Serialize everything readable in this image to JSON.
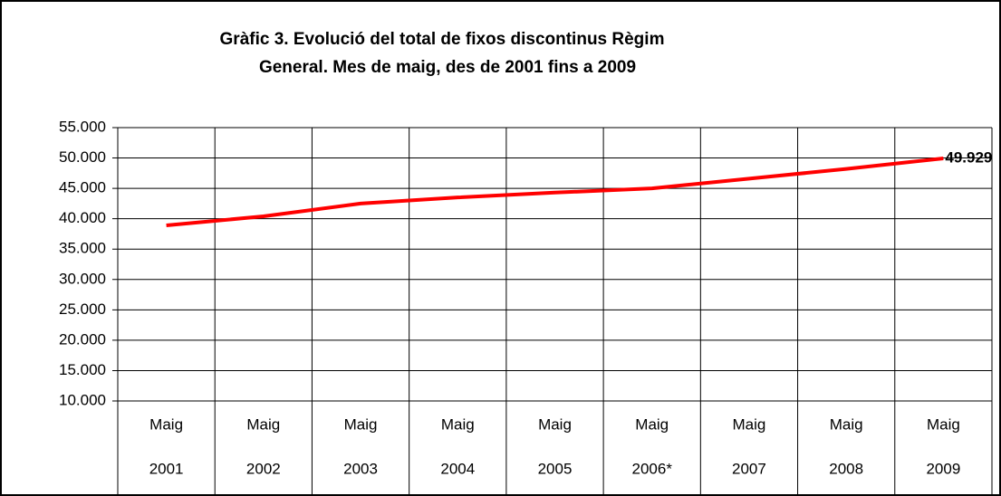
{
  "chart_data": {
    "type": "line",
    "title": [
      "Gràfic 3. Evolució del total de fixos discontinus Règim",
      "General. Mes de maig, des de 2001 fins a 2009"
    ],
    "categories": [
      [
        "Maig",
        "2001"
      ],
      [
        "Maig",
        "2002"
      ],
      [
        "Maig",
        "2003"
      ],
      [
        "Maig",
        "2004"
      ],
      [
        "Maig",
        "2005"
      ],
      [
        "Maig",
        "2006*"
      ],
      [
        "Maig",
        "2007"
      ],
      [
        "Maig",
        "2008"
      ],
      [
        "Maig",
        "2009"
      ]
    ],
    "values": [
      38900,
      40400,
      42500,
      43500,
      44300,
      45000,
      46600,
      48200,
      49929
    ],
    "value_labels": [
      null,
      null,
      null,
      null,
      null,
      null,
      null,
      null,
      "49.929"
    ],
    "color": "#ff0000",
    "ylim": [
      10000,
      55000
    ],
    "yticks": [
      {
        "value": 10000,
        "label": "10.000"
      },
      {
        "value": 15000,
        "label": "15.000"
      },
      {
        "value": 20000,
        "label": "20.000"
      },
      {
        "value": 25000,
        "label": "25.000"
      },
      {
        "value": 30000,
        "label": "30.000"
      },
      {
        "value": 35000,
        "label": "35.000"
      },
      {
        "value": 40000,
        "label": "40.000"
      },
      {
        "value": 45000,
        "label": "45.000"
      },
      {
        "value": 50000,
        "label": "50.000"
      },
      {
        "value": 55000,
        "label": "55.000"
      }
    ],
    "grid": true
  }
}
